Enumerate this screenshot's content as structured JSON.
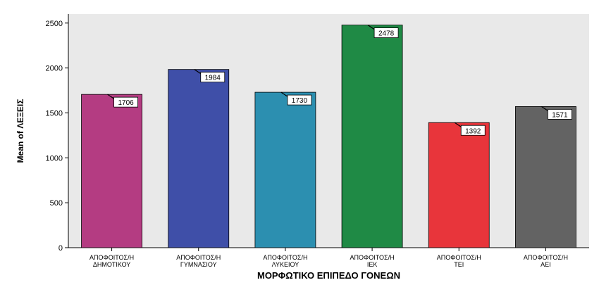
{
  "chart_data": {
    "type": "bar",
    "title": "",
    "xlabel": "ΜΟΡΦΩΤΙΚΟ ΕΠΙΠΕΔΟ ΓΟΝΕΩΝ",
    "ylabel": "Mean of ΛΕΞΕΙΣ",
    "ylim": [
      0,
      2600
    ],
    "yticks": [
      0,
      500,
      1000,
      1500,
      2000,
      2500
    ],
    "grid": false,
    "legend": "none",
    "categories": [
      [
        "ΑΠΟΦΟΙΤΟΣ/Η",
        "ΔΗΜΟΤΙΚΟΥ"
      ],
      [
        "ΑΠΟΦΟΙΤΟΣ/Η",
        "ΓΥΜΝΑΣΙΟΥ"
      ],
      [
        "ΑΠΟΦΟΙΤΟΣ/Η",
        "ΛΥΚΕΙΟΥ"
      ],
      [
        "ΑΠΟΦΟΙΤΟΣ/Η",
        "ΙΕΚ"
      ],
      [
        "ΑΠΟΦΟΙΤΟΣ/Η",
        "ΤΕΙ"
      ],
      [
        "ΑΠΟΦΟΙΤΟΣ/Η",
        "ΑΕΙ"
      ]
    ],
    "values": [
      1706,
      1984,
      1730,
      2478,
      1392,
      1571
    ],
    "data_labels": [
      "1706",
      "1984",
      "1730",
      "2478",
      "1392",
      "1571"
    ],
    "colors": [
      "#b43c82",
      "#3f4fa8",
      "#2c8fb0",
      "#1f8a45",
      "#e8353b",
      "#636363"
    ],
    "plot_background": "#e9e9e9"
  }
}
